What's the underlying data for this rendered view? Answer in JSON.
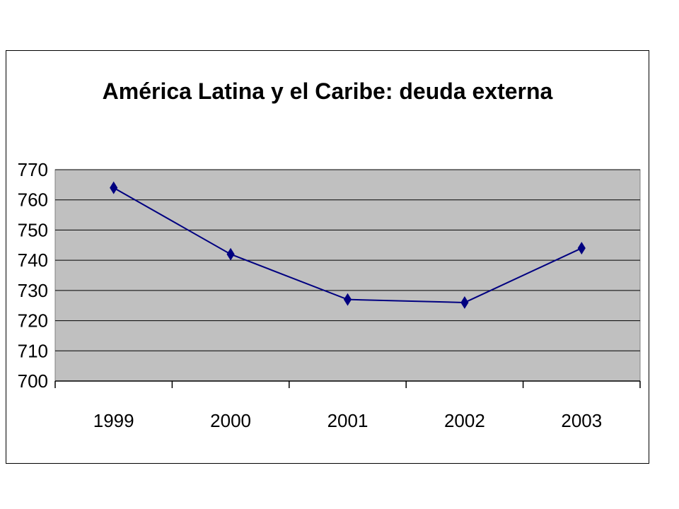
{
  "chart_data": {
    "type": "line",
    "title": "América Latina y el Caribe: deuda externa",
    "categories": [
      "1999",
      "2000",
      "2001",
      "2002",
      "2003"
    ],
    "series": [
      {
        "values": [
          764,
          742,
          727,
          726,
          744
        ],
        "color": "#000080",
        "marker": "diamond"
      }
    ],
    "ylim": [
      700,
      770
    ],
    "yticks": [
      700,
      710,
      720,
      730,
      740,
      750,
      760,
      770
    ],
    "grid": true,
    "plot_background": "#c0c0c0",
    "legend": "none"
  }
}
